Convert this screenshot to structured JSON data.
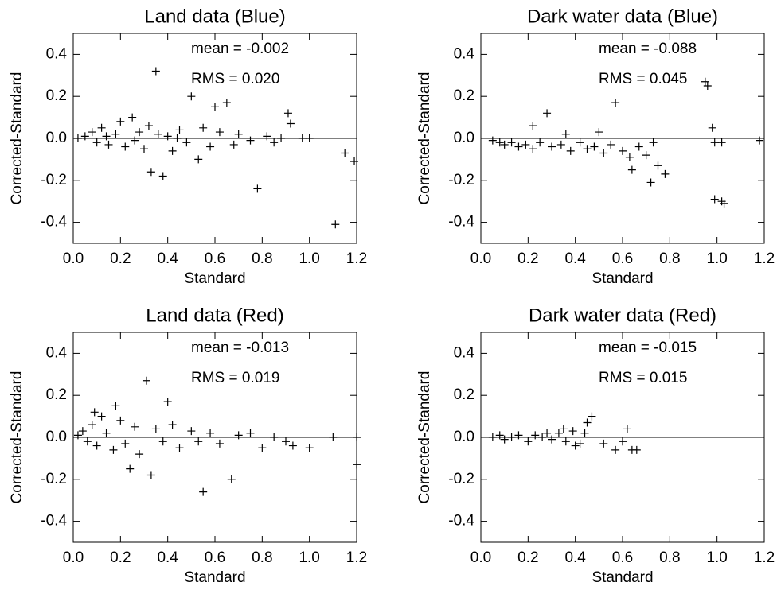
{
  "chart_data": [
    {
      "type": "scatter",
      "title": "Land data (Blue)",
      "xlabel": "Standard",
      "ylabel": "Corrected-Standard",
      "annotations": [
        "mean = -0.002",
        "RMS =  0.020"
      ],
      "reference_line": 0,
      "color": "#000000",
      "grid": false,
      "xlim": [
        0,
        1.2
      ],
      "ylim": [
        -0.5,
        0.5
      ],
      "xticks": [
        {
          "value": 0,
          "label": "0.0"
        },
        0.2,
        0.4,
        0.6,
        0.8,
        {
          "value": 1,
          "label": "1.0"
        },
        1.2
      ],
      "yticks": [
        -0.4,
        -0.2,
        {
          "value": 0,
          "label": "0.0"
        },
        0.2,
        0.4
      ],
      "x": [
        0.35,
        0.5,
        0.78,
        1.11,
        1.15,
        1.19,
        0.91,
        0.65,
        0.6,
        0.33,
        0.38,
        0.53,
        0.92,
        1.0,
        0.97,
        0.02,
        0.05,
        0.08,
        0.1,
        0.12,
        0.15,
        0.18,
        0.2,
        0.22,
        0.25,
        0.28,
        0.3,
        0.32,
        0.4,
        0.42,
        0.45,
        0.48,
        0.55,
        0.58,
        0.62,
        0.68,
        0.7,
        0.75,
        0.82,
        0.85,
        0.88,
        0.14,
        0.26,
        0.36,
        0.44
      ],
      "y": [
        0.32,
        0.2,
        -0.24,
        -0.41,
        -0.07,
        -0.11,
        0.12,
        0.17,
        0.15,
        -0.16,
        -0.18,
        -0.1,
        0.07,
        0.0,
        0.0,
        0.0,
        0.01,
        0.03,
        -0.02,
        0.05,
        -0.03,
        0.02,
        0.08,
        -0.04,
        0.1,
        0.03,
        -0.05,
        0.06,
        0.01,
        -0.06,
        0.04,
        -0.02,
        0.05,
        -0.04,
        0.03,
        -0.03,
        0.02,
        -0.01,
        0.01,
        -0.02,
        0.0,
        0.01,
        -0.01,
        0.02,
        0.0
      ]
    },
    {
      "type": "scatter",
      "title": "Dark water data (Blue)",
      "xlabel": "Standard",
      "ylabel": "Corrected-Standard",
      "annotations": [
        "mean = -0.088",
        "RMS =  0.045"
      ],
      "reference_line": 0,
      "color": "#000000",
      "grid": false,
      "xlim": [
        0,
        1.2
      ],
      "ylim": [
        -0.5,
        0.5
      ],
      "xticks": [
        {
          "value": 0,
          "label": "0.0"
        },
        0.2,
        0.4,
        0.6,
        0.8,
        {
          "value": 1,
          "label": "1.0"
        },
        1.2
      ],
      "yticks": [
        -0.4,
        -0.2,
        {
          "value": 0,
          "label": "0.0"
        },
        0.2,
        0.4
      ],
      "x": [
        0.96,
        0.95,
        0.98,
        0.99,
        1.02,
        0.99,
        1.02,
        1.03,
        1.18,
        0.57,
        0.28,
        0.78,
        0.72,
        0.64,
        0.75,
        0.22,
        0.05,
        0.08,
        0.1,
        0.13,
        0.16,
        0.19,
        0.22,
        0.25,
        0.3,
        0.34,
        0.38,
        0.42,
        0.45,
        0.48,
        0.52,
        0.55,
        0.6,
        0.63,
        0.67,
        0.7,
        0.73,
        0.36,
        0.5
      ],
      "y": [
        0.25,
        0.27,
        0.05,
        -0.02,
        -0.02,
        -0.29,
        -0.3,
        -0.31,
        -0.01,
        0.17,
        0.12,
        -0.17,
        -0.21,
        -0.15,
        -0.13,
        0.06,
        -0.01,
        -0.02,
        -0.03,
        -0.02,
        -0.04,
        -0.03,
        -0.05,
        -0.02,
        -0.04,
        -0.03,
        -0.06,
        -0.02,
        -0.05,
        -0.04,
        -0.07,
        -0.03,
        -0.06,
        -0.09,
        -0.04,
        -0.08,
        -0.02,
        0.02,
        0.03
      ]
    },
    {
      "type": "scatter",
      "title": "Land data (Red)",
      "xlabel": "Standard",
      "ylabel": "Corrected-Standard",
      "annotations": [
        "mean = -0.013",
        "RMS =  0.019"
      ],
      "reference_line": 0,
      "color": "#000000",
      "grid": false,
      "xlim": [
        0,
        1.2
      ],
      "ylim": [
        -0.5,
        0.5
      ],
      "xticks": [
        {
          "value": 0,
          "label": "0.0"
        },
        0.2,
        0.4,
        0.6,
        0.8,
        {
          "value": 1,
          "label": "1.0"
        },
        1.2
      ],
      "yticks": [
        -0.4,
        -0.2,
        {
          "value": 0,
          "label": "0.0"
        },
        0.2,
        0.4
      ],
      "x": [
        0.31,
        0.4,
        0.55,
        0.67,
        0.33,
        0.24,
        1.2,
        1.0,
        0.93,
        1.1,
        1.2,
        0.8,
        0.02,
        0.04,
        0.06,
        0.08,
        0.1,
        0.12,
        0.14,
        0.17,
        0.2,
        0.22,
        0.26,
        0.28,
        0.35,
        0.38,
        0.42,
        0.45,
        0.5,
        0.53,
        0.58,
        0.62,
        0.7,
        0.75,
        0.85,
        0.9,
        0.18,
        0.09
      ],
      "y": [
        0.27,
        0.17,
        -0.26,
        -0.2,
        -0.18,
        -0.15,
        -0.13,
        -0.05,
        -0.04,
        0.0,
        0.0,
        -0.05,
        0.01,
        0.03,
        -0.02,
        0.06,
        -0.04,
        0.1,
        0.02,
        -0.06,
        0.08,
        -0.03,
        0.05,
        -0.08,
        0.04,
        -0.02,
        0.06,
        -0.05,
        0.03,
        -0.02,
        0.02,
        -0.03,
        0.01,
        0.02,
        0.0,
        -0.02,
        0.15,
        0.12
      ]
    },
    {
      "type": "scatter",
      "title": "Dark water data (Red)",
      "xlabel": "Standard",
      "ylabel": "Corrected-Standard",
      "annotations": [
        "mean = -0.015",
        "RMS =  0.015"
      ],
      "reference_line": 0,
      "color": "#000000",
      "grid": false,
      "xlim": [
        0,
        1.2
      ],
      "ylim": [
        -0.5,
        0.5
      ],
      "xticks": [
        {
          "value": 0,
          "label": "0.0"
        },
        0.2,
        0.4,
        0.6,
        0.8,
        {
          "value": 1,
          "label": "1.0"
        },
        1.2
      ],
      "yticks": [
        -0.4,
        -0.2,
        {
          "value": 0,
          "label": "0.0"
        },
        0.2,
        0.4
      ],
      "x": [
        0.47,
        0.45,
        0.62,
        0.64,
        0.66,
        0.57,
        0.52,
        0.6,
        0.05,
        0.08,
        0.1,
        0.13,
        0.16,
        0.2,
        0.23,
        0.26,
        0.3,
        0.33,
        0.36,
        0.39,
        0.42,
        0.44,
        0.28,
        0.35,
        0.4
      ],
      "y": [
        0.1,
        0.07,
        0.04,
        -0.06,
        -0.06,
        -0.06,
        -0.03,
        -0.02,
        0.0,
        0.01,
        -0.01,
        0.0,
        0.01,
        -0.02,
        0.01,
        0.0,
        -0.01,
        0.02,
        -0.02,
        0.03,
        -0.03,
        0.02,
        0.02,
        0.04,
        -0.04
      ]
    }
  ]
}
